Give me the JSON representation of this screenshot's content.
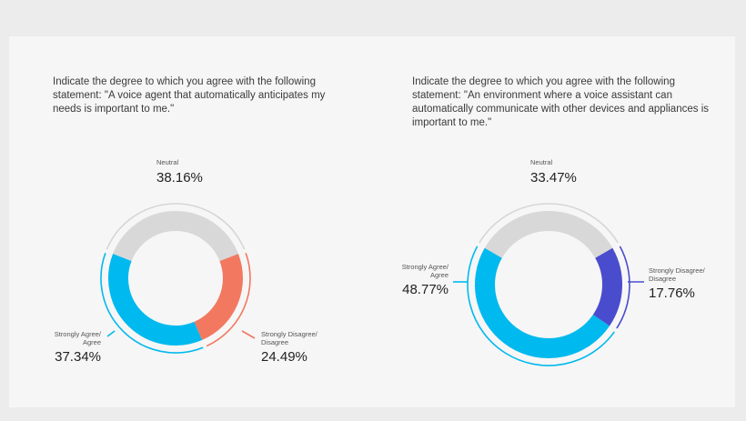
{
  "colors": {
    "neutral": "#d8d8d8",
    "agree": "#00b9ee",
    "disagree_left": "#f27860",
    "disagree_right": "#4a4cce",
    "outer_neutral": "#d6d6d6"
  },
  "chart_data": [
    {
      "type": "pie",
      "variant": "donut",
      "title": "Indicate the degree to which you agree with the following statement: \"A voice agent that automatically anticipates my needs is important to me.\"",
      "slices": [
        {
          "key": "neutral",
          "label_lines": [
            "Neutral"
          ],
          "value": 38.16,
          "value_text": "38.16%"
        },
        {
          "key": "disagree",
          "label_lines": [
            "Strongly Disagree/",
            "Disagree"
          ],
          "value": 24.49,
          "value_text": "24.49%"
        },
        {
          "key": "agree",
          "label_lines": [
            "Strongly Agree/",
            "Agree"
          ],
          "value": 37.34,
          "value_text": "37.34%"
        }
      ]
    },
    {
      "type": "pie",
      "variant": "donut",
      "title": "Indicate the degree to which you agree with the following statement: \"An environment where a voice assistant can automatically communicate with other devices and appliances is important to me.\"",
      "slices": [
        {
          "key": "neutral",
          "label_lines": [
            "Neutral"
          ],
          "value": 33.47,
          "value_text": "33.47%"
        },
        {
          "key": "disagree",
          "label_lines": [
            "Strongly Disagree/",
            "Disagree"
          ],
          "value": 17.76,
          "value_text": "17.76%"
        },
        {
          "key": "agree",
          "label_lines": [
            "Strongly Agree/",
            "Agree"
          ],
          "value": 48.77,
          "value_text": "48.77%"
        }
      ]
    }
  ]
}
